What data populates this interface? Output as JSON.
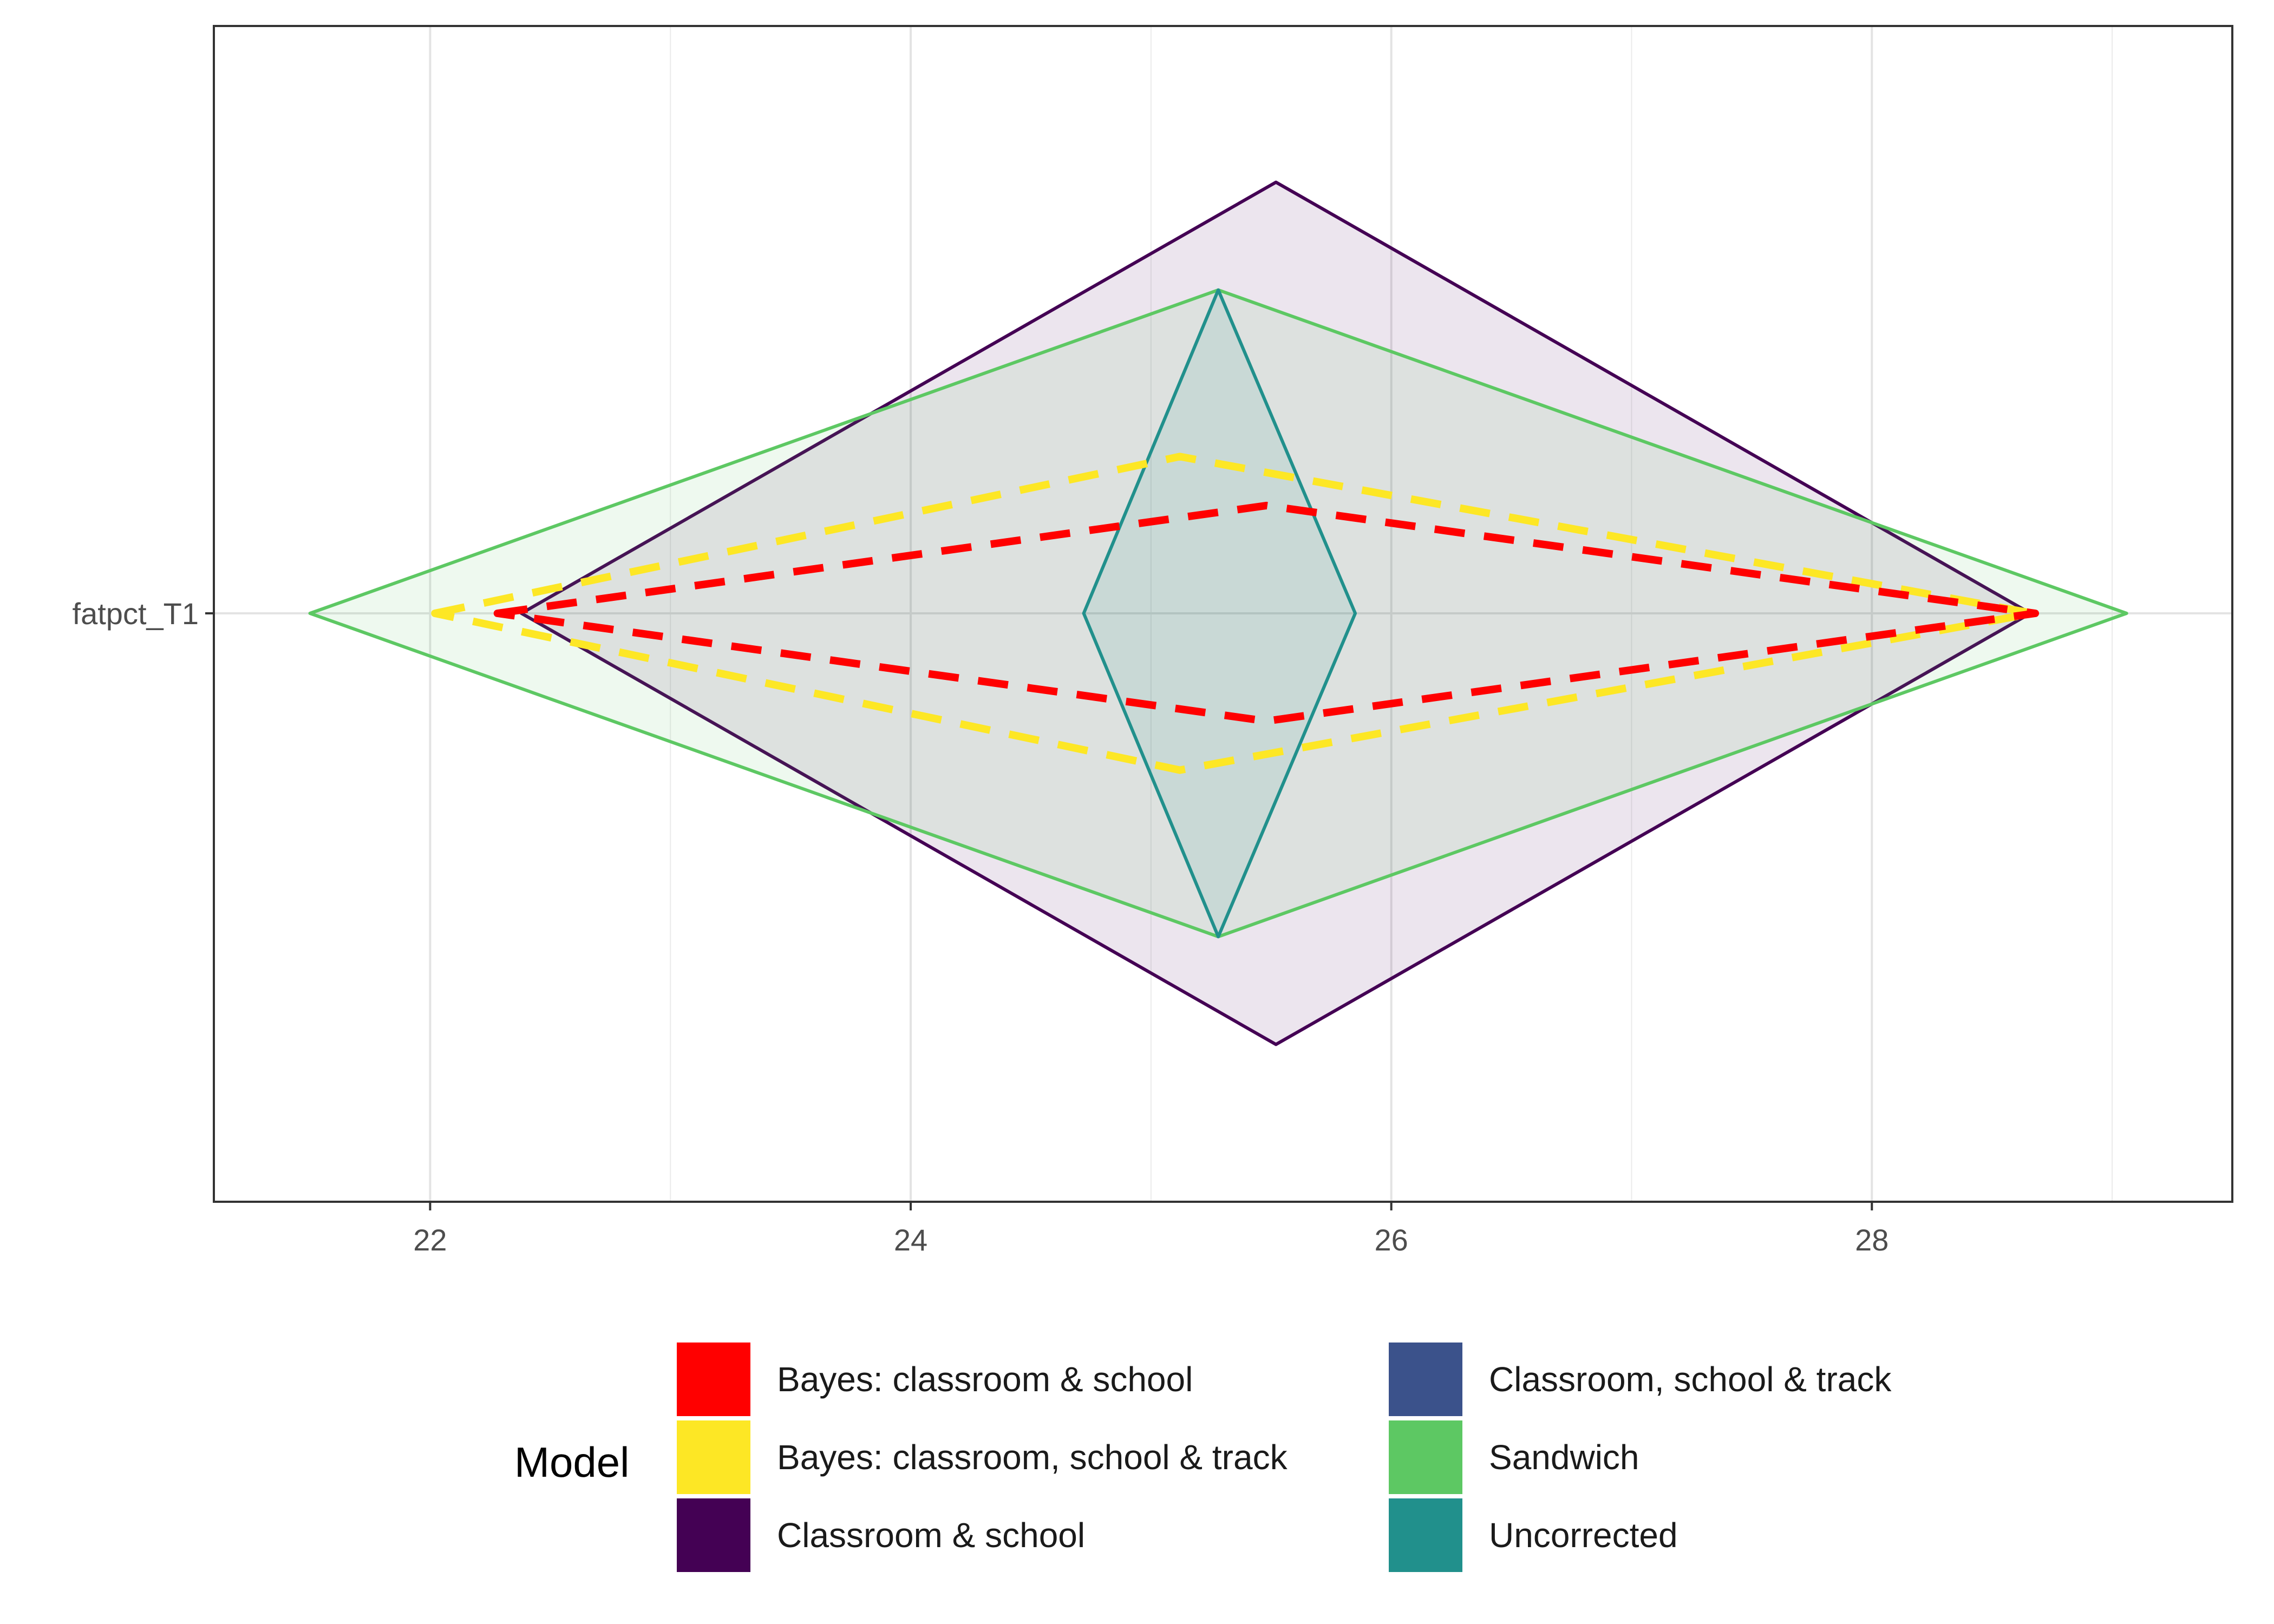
{
  "chart_data": {
    "type": "diamond",
    "y_categories": [
      "fatpct_T1"
    ],
    "x_ticks": [
      22,
      24,
      26,
      28
    ],
    "xlim": [
      21.1,
      29.5
    ],
    "grid": true,
    "legend": {
      "title": "Model",
      "position": "bottom",
      "entries": [
        {
          "label": "Bayes: classroom & school",
          "color": "#FF0000"
        },
        {
          "label": "Bayes: classroom, school & track",
          "color": "#FDE725"
        },
        {
          "label": "Classroom & school",
          "color": "#440154"
        },
        {
          "label": "Classroom, school & track",
          "color": "#3B528B"
        },
        {
          "label": "Sandwich",
          "color": "#5DC863"
        },
        {
          "label": "Uncorrected",
          "color": "#21908C"
        }
      ]
    },
    "series": [
      {
        "name": "Classroom & school",
        "color": "#440154",
        "style": "solid",
        "fill_opacity": 0.1,
        "lower": 22.38,
        "estimate": 25.52,
        "upper": 28.66,
        "half_height": 0.44
      },
      {
        "name": "Sandwich",
        "color": "#5DC863",
        "style": "solid",
        "fill_opacity": 0.1,
        "lower": 21.5,
        "estimate": 25.28,
        "upper": 29.06,
        "half_height": 0.33
      },
      {
        "name": "Uncorrected",
        "color": "#21908C",
        "style": "solid",
        "fill_opacity": 0.1,
        "lower": 24.72,
        "estimate": 25.28,
        "upper": 25.85,
        "half_height": 0.33
      },
      {
        "name": "Bayes: classroom, school & track",
        "color": "#FDE725",
        "style": "dashed",
        "fill_opacity": 0,
        "lower": 22.02,
        "estimate": 25.12,
        "upper": 28.67,
        "half_height": 0.16
      },
      {
        "name": "Bayes: classroom & school",
        "color": "#FF0000",
        "style": "dashed",
        "fill_opacity": 0,
        "lower": 22.28,
        "estimate": 25.48,
        "upper": 28.68,
        "half_height": 0.11
      }
    ]
  }
}
